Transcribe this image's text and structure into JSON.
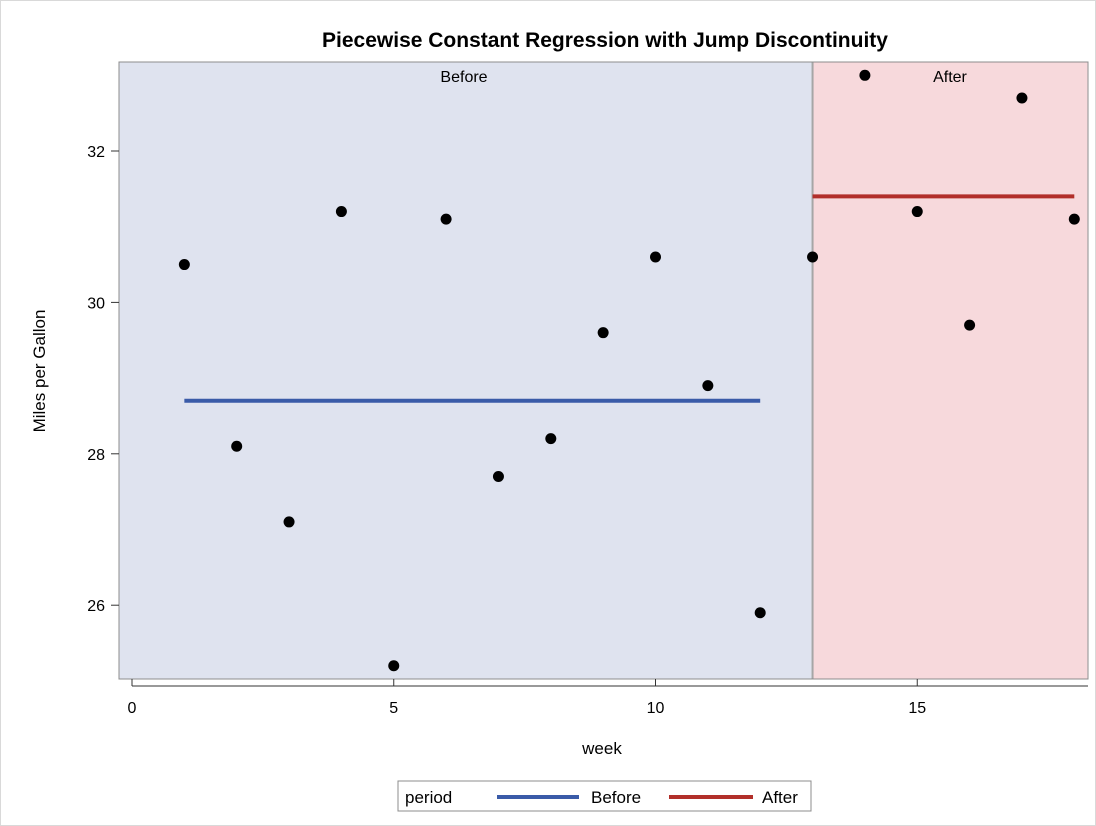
{
  "chart_data": {
    "type": "scatter",
    "title": "Piecewise Constant Regression with Jump Discontinuity",
    "xlabel": "week",
    "ylabel": "Miles per Gallon",
    "xlim": [
      0,
      18
    ],
    "ylim": [
      25,
      33.2
    ],
    "xticks": [
      0,
      5,
      10,
      15
    ],
    "yticks": [
      26,
      28,
      30,
      32
    ],
    "grid": false,
    "points": [
      {
        "x": 1,
        "y": 30.5
      },
      {
        "x": 2,
        "y": 28.1
      },
      {
        "x": 3,
        "y": 27.1
      },
      {
        "x": 4,
        "y": 31.2
      },
      {
        "x": 5,
        "y": 25.2
      },
      {
        "x": 6,
        "y": 31.1
      },
      {
        "x": 7,
        "y": 27.7
      },
      {
        "x": 8,
        "y": 28.2
      },
      {
        "x": 9,
        "y": 29.6
      },
      {
        "x": 10,
        "y": 30.6
      },
      {
        "x": 11,
        "y": 28.9
      },
      {
        "x": 12,
        "y": 25.9
      },
      {
        "x": 13,
        "y": 30.6
      },
      {
        "x": 14,
        "y": 33.0
      },
      {
        "x": 15,
        "y": 31.2
      },
      {
        "x": 16,
        "y": 29.7
      },
      {
        "x": 17,
        "y": 32.7
      },
      {
        "x": 18,
        "y": 31.1
      }
    ],
    "series": [
      {
        "name": "Before",
        "color": "#3a5ba8",
        "x": [
          1,
          12
        ],
        "y": [
          28.7,
          28.7
        ]
      },
      {
        "name": "After",
        "color": "#b22f2a",
        "x": [
          13,
          18
        ],
        "y": [
          31.4,
          31.4
        ]
      }
    ],
    "regions": [
      {
        "label": "Before",
        "x": [
          -0.25,
          13
        ],
        "color": "#dfe3ef"
      },
      {
        "label": "After",
        "x": [
          13,
          18.25
        ],
        "color": "#f7d9dc"
      }
    ],
    "legend": {
      "title": "period",
      "position": "bottom-center"
    }
  }
}
